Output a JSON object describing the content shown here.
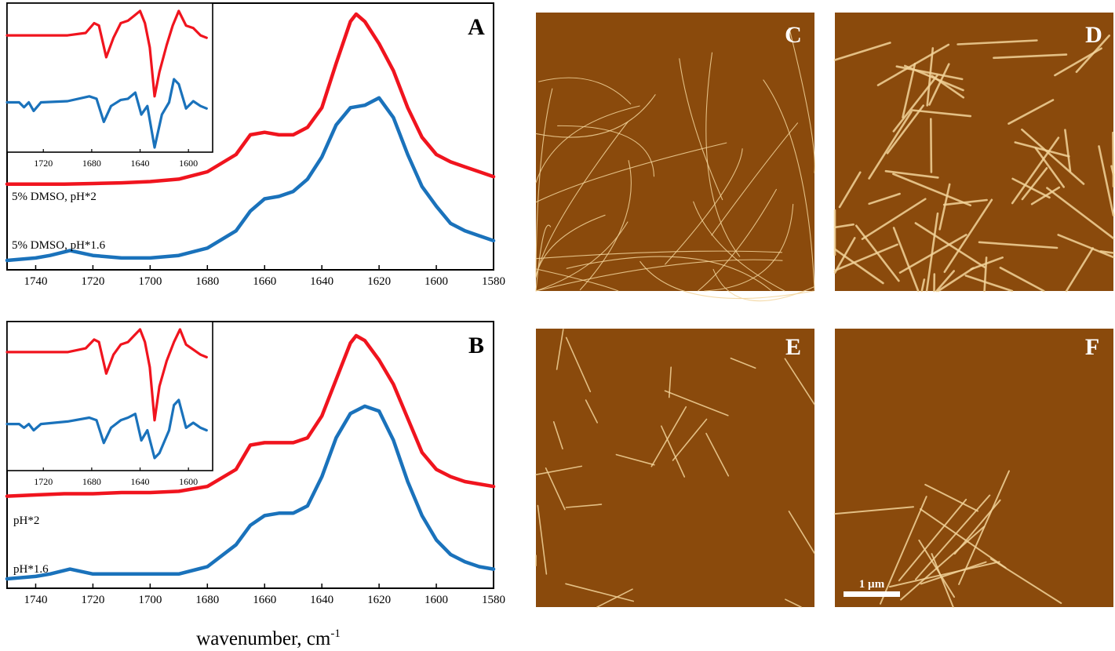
{
  "chart_data": [
    {
      "type": "line",
      "panel_label": "A",
      "xlim": [
        1750,
        1580
      ],
      "x_ticks": [
        1740,
        1720,
        1700,
        1680,
        1660,
        1640,
        1620,
        1600,
        1580
      ],
      "series": [
        {
          "name": "5% DMSO, pH*2",
          "color": "#f0141e",
          "points": [
            [
              1750,
              0.31
            ],
            [
              1740,
              0.31
            ],
            [
              1730,
              0.31
            ],
            [
              1720,
              0.312
            ],
            [
              1710,
              0.315
            ],
            [
              1700,
              0.32
            ],
            [
              1690,
              0.33
            ],
            [
              1680,
              0.36
            ],
            [
              1670,
              0.43
            ],
            [
              1665,
              0.51
            ],
            [
              1660,
              0.52
            ],
            [
              1655,
              0.51
            ],
            [
              1650,
              0.51
            ],
            [
              1645,
              0.54
            ],
            [
              1640,
              0.62
            ],
            [
              1635,
              0.8
            ],
            [
              1630,
              0.97
            ],
            [
              1628,
              1.0
            ],
            [
              1625,
              0.97
            ],
            [
              1620,
              0.88
            ],
            [
              1615,
              0.77
            ],
            [
              1610,
              0.62
            ],
            [
              1605,
              0.5
            ],
            [
              1600,
              0.43
            ],
            [
              1595,
              0.4
            ],
            [
              1590,
              0.38
            ],
            [
              1585,
              0.36
            ],
            [
              1580,
              0.34
            ]
          ]
        },
        {
          "name": "5% DMSO, pH*1.6",
          "color": "#1a72bb",
          "points": [
            [
              1750,
              0.0
            ],
            [
              1740,
              0.01
            ],
            [
              1735,
              0.02
            ],
            [
              1728,
              0.04
            ],
            [
              1720,
              0.02
            ],
            [
              1710,
              0.01
            ],
            [
              1700,
              0.01
            ],
            [
              1690,
              0.02
            ],
            [
              1680,
              0.05
            ],
            [
              1670,
              0.12
            ],
            [
              1665,
              0.2
            ],
            [
              1660,
              0.25
            ],
            [
              1655,
              0.26
            ],
            [
              1650,
              0.28
            ],
            [
              1645,
              0.33
            ],
            [
              1640,
              0.42
            ],
            [
              1635,
              0.55
            ],
            [
              1630,
              0.62
            ],
            [
              1625,
              0.63
            ],
            [
              1620,
              0.66
            ],
            [
              1615,
              0.58
            ],
            [
              1610,
              0.43
            ],
            [
              1605,
              0.3
            ],
            [
              1600,
              0.22
            ],
            [
              1595,
              0.15
            ],
            [
              1590,
              0.12
            ],
            [
              1585,
              0.1
            ],
            [
              1580,
              0.08
            ]
          ]
        }
      ],
      "inset": {
        "xlim": [
          1750,
          1580
        ],
        "x_ticks": [
          1720,
          1680,
          1640,
          1600
        ],
        "series": [
          {
            "name": "",
            "color": "#f0141e",
            "points": [
              [
                1750,
                0.8
              ],
              [
                1700,
                0.8
              ],
              [
                1685,
                0.82
              ],
              [
                1678,
                0.9
              ],
              [
                1674,
                0.88
              ],
              [
                1668,
                0.62
              ],
              [
                1662,
                0.78
              ],
              [
                1656,
                0.9
              ],
              [
                1650,
                0.92
              ],
              [
                1645,
                0.96
              ],
              [
                1640,
                1.0
              ],
              [
                1636,
                0.9
              ],
              [
                1632,
                0.7
              ],
              [
                1628,
                0.3
              ],
              [
                1624,
                0.5
              ],
              [
                1618,
                0.72
              ],
              [
                1613,
                0.88
              ],
              [
                1608,
                1.0
              ],
              [
                1602,
                0.88
              ],
              [
                1596,
                0.86
              ],
              [
                1590,
                0.8
              ],
              [
                1585,
                0.78
              ]
            ]
          },
          {
            "name": "",
            "color": "#1a72bb",
            "points": [
              [
                1750,
                0.25
              ],
              [
                1740,
                0.25
              ],
              [
                1736,
                0.21
              ],
              [
                1732,
                0.25
              ],
              [
                1728,
                0.18
              ],
              [
                1722,
                0.25
              ],
              [
                1700,
                0.26
              ],
              [
                1682,
                0.3
              ],
              [
                1676,
                0.28
              ],
              [
                1670,
                0.09
              ],
              [
                1664,
                0.22
              ],
              [
                1656,
                0.27
              ],
              [
                1650,
                0.28
              ],
              [
                1644,
                0.33
              ],
              [
                1639,
                0.15
              ],
              [
                1634,
                0.22
              ],
              [
                1628,
                -0.12
              ],
              [
                1622,
                0.15
              ],
              [
                1616,
                0.25
              ],
              [
                1612,
                0.44
              ],
              [
                1608,
                0.4
              ],
              [
                1602,
                0.2
              ],
              [
                1596,
                0.26
              ],
              [
                1590,
                0.22
              ],
              [
                1585,
                0.2
              ]
            ]
          }
        ]
      }
    },
    {
      "type": "line",
      "panel_label": "B",
      "xlim": [
        1750,
        1580
      ],
      "x_ticks": [
        1740,
        1720,
        1700,
        1680,
        1660,
        1640,
        1620,
        1600,
        1580
      ],
      "xlabel": "wavenumber, cm",
      "xlabel_sup": "-1",
      "series": [
        {
          "name": "pH*2",
          "color": "#f0141e",
          "points": [
            [
              1750,
              0.34
            ],
            [
              1740,
              0.345
            ],
            [
              1730,
              0.35
            ],
            [
              1720,
              0.35
            ],
            [
              1710,
              0.355
            ],
            [
              1700,
              0.355
            ],
            [
              1690,
              0.36
            ],
            [
              1680,
              0.38
            ],
            [
              1670,
              0.45
            ],
            [
              1665,
              0.55
            ],
            [
              1660,
              0.56
            ],
            [
              1655,
              0.56
            ],
            [
              1650,
              0.56
            ],
            [
              1645,
              0.58
            ],
            [
              1640,
              0.67
            ],
            [
              1635,
              0.82
            ],
            [
              1630,
              0.97
            ],
            [
              1628,
              1.0
            ],
            [
              1625,
              0.98
            ],
            [
              1620,
              0.9
            ],
            [
              1615,
              0.8
            ],
            [
              1610,
              0.66
            ],
            [
              1605,
              0.52
            ],
            [
              1600,
              0.45
            ],
            [
              1595,
              0.42
            ],
            [
              1590,
              0.4
            ],
            [
              1585,
              0.39
            ],
            [
              1580,
              0.38
            ]
          ]
        },
        {
          "name": "pH*1.6",
          "color": "#1a72bb",
          "points": [
            [
              1750,
              0.0
            ],
            [
              1740,
              0.01
            ],
            [
              1735,
              0.02
            ],
            [
              1728,
              0.04
            ],
            [
              1720,
              0.02
            ],
            [
              1710,
              0.02
            ],
            [
              1700,
              0.02
            ],
            [
              1690,
              0.02
            ],
            [
              1680,
              0.05
            ],
            [
              1670,
              0.14
            ],
            [
              1665,
              0.22
            ],
            [
              1660,
              0.26
            ],
            [
              1655,
              0.27
            ],
            [
              1650,
              0.27
            ],
            [
              1645,
              0.3
            ],
            [
              1640,
              0.42
            ],
            [
              1635,
              0.58
            ],
            [
              1630,
              0.68
            ],
            [
              1625,
              0.71
            ],
            [
              1620,
              0.69
            ],
            [
              1615,
              0.57
            ],
            [
              1610,
              0.4
            ],
            [
              1605,
              0.26
            ],
            [
              1600,
              0.16
            ],
            [
              1595,
              0.1
            ],
            [
              1590,
              0.07
            ],
            [
              1585,
              0.05
            ],
            [
              1580,
              0.04
            ]
          ]
        }
      ],
      "inset": {
        "xlim": [
          1750,
          1580
        ],
        "x_ticks": [
          1720,
          1680,
          1640,
          1600
        ],
        "series": [
          {
            "name": "",
            "color": "#f0141e",
            "points": [
              [
                1750,
                0.82
              ],
              [
                1700,
                0.82
              ],
              [
                1685,
                0.85
              ],
              [
                1678,
                0.92
              ],
              [
                1674,
                0.9
              ],
              [
                1668,
                0.65
              ],
              [
                1662,
                0.8
              ],
              [
                1656,
                0.88
              ],
              [
                1650,
                0.9
              ],
              [
                1645,
                0.95
              ],
              [
                1640,
                1.0
              ],
              [
                1636,
                0.9
              ],
              [
                1632,
                0.7
              ],
              [
                1628,
                0.28
              ],
              [
                1624,
                0.55
              ],
              [
                1618,
                0.75
              ],
              [
                1612,
                0.9
              ],
              [
                1607,
                1.0
              ],
              [
                1602,
                0.88
              ],
              [
                1596,
                0.84
              ],
              [
                1590,
                0.8
              ],
              [
                1585,
                0.78
              ]
            ]
          },
          {
            "name": "",
            "color": "#1a72bb",
            "points": [
              [
                1750,
                0.25
              ],
              [
                1740,
                0.25
              ],
              [
                1736,
                0.22
              ],
              [
                1732,
                0.25
              ],
              [
                1728,
                0.2
              ],
              [
                1722,
                0.25
              ],
              [
                1700,
                0.27
              ],
              [
                1682,
                0.3
              ],
              [
                1676,
                0.28
              ],
              [
                1670,
                0.1
              ],
              [
                1664,
                0.22
              ],
              [
                1656,
                0.28
              ],
              [
                1650,
                0.3
              ],
              [
                1644,
                0.33
              ],
              [
                1639,
                0.12
              ],
              [
                1634,
                0.2
              ],
              [
                1628,
                -0.02
              ],
              [
                1624,
                0.02
              ],
              [
                1616,
                0.2
              ],
              [
                1612,
                0.4
              ],
              [
                1608,
                0.44
              ],
              [
                1602,
                0.22
              ],
              [
                1596,
                0.26
              ],
              [
                1590,
                0.22
              ],
              [
                1585,
                0.2
              ]
            ]
          }
        ]
      }
    }
  ],
  "afm_panels": [
    {
      "label": "C"
    },
    {
      "label": "D"
    },
    {
      "label": "E"
    },
    {
      "label": "F",
      "scale_bar": "1 µm"
    }
  ],
  "colors": {
    "afm_background": "#8a4a0c",
    "afm_fibril": "#f2d49a"
  }
}
